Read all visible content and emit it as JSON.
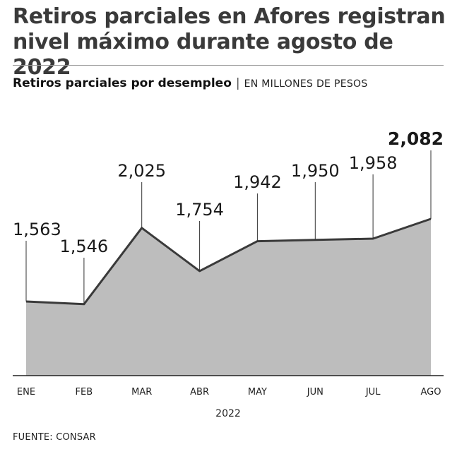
{
  "header": {
    "title": "Retiros parciales en Afores registran nivel máximo durante agosto de 2022",
    "subtitle_bold": "Retiros parciales por desempleo",
    "separator": "|",
    "subtitle_unit": "EN MILLONES DE PESOS"
  },
  "footer": {
    "source": "FUENTE: CONSAR"
  },
  "chart_data": {
    "type": "area",
    "x_title": "2022",
    "categories": [
      "ENE",
      "FEB",
      "MAR",
      "ABR",
      "MAY",
      "JUN",
      "JUL",
      "AGO"
    ],
    "values": [
      1563,
      1546,
      2025,
      1754,
      1942,
      1950,
      1958,
      2082
    ],
    "labels": [
      "1,563",
      "1,546",
      "2,025",
      "1,754",
      "1,942",
      "1,950",
      "1,958",
      "2,082"
    ],
    "highlight_index": 7,
    "ylim": [
      1000,
      2082
    ],
    "colors": {
      "fill": "#bdbdbd",
      "line": "#3a3a3a",
      "text": "#1a1a1a"
    },
    "grid": false
  }
}
